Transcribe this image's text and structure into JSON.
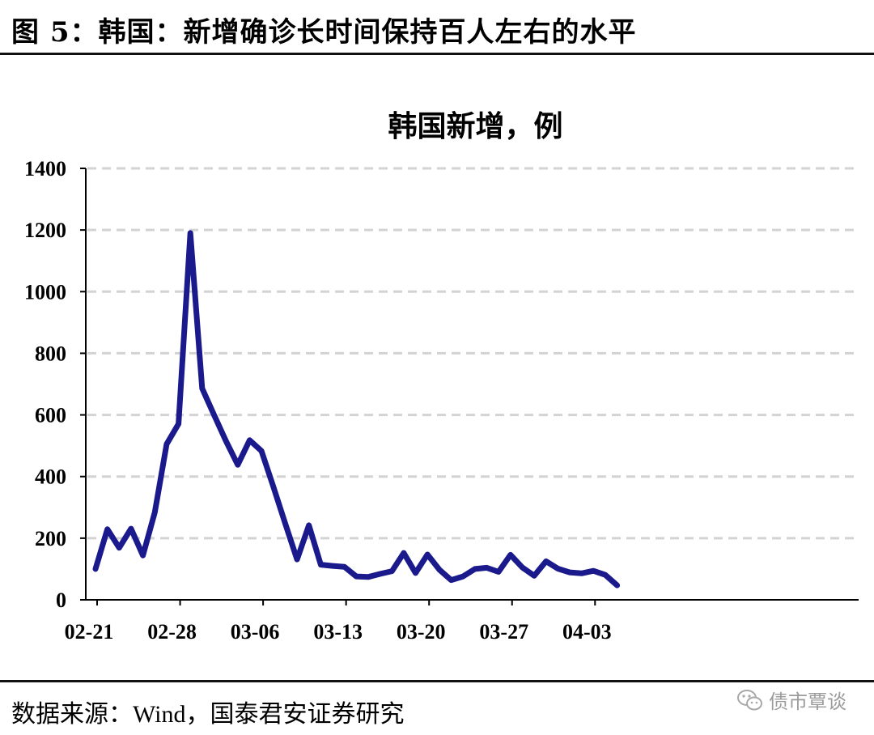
{
  "figure": {
    "title": "图 5：韩国：新增确诊长时间保持百人左右的水平",
    "source": "数据来源：Wind，国泰君安证券研究",
    "watermark": "债市覃谈"
  },
  "chart_data": {
    "type": "line",
    "title": "韩国新增，例",
    "xlabel": "",
    "ylabel": "",
    "x": [
      "02-21",
      "02-22",
      "02-23",
      "02-24",
      "02-25",
      "02-26",
      "02-27",
      "02-28",
      "02-29",
      "03-01",
      "03-02",
      "03-03",
      "03-04",
      "03-05",
      "03-06",
      "03-07",
      "03-08",
      "03-09",
      "03-10",
      "03-11",
      "03-12",
      "03-13",
      "03-14",
      "03-15",
      "03-16",
      "03-17",
      "03-18",
      "03-19",
      "03-20",
      "03-21",
      "03-22",
      "03-23",
      "03-24",
      "03-25",
      "03-26",
      "03-27",
      "03-28",
      "03-29",
      "03-30",
      "03-31",
      "04-01",
      "04-02",
      "04-03",
      "04-04",
      "04-05"
    ],
    "x_tick_labels": [
      "02-21",
      "02-28",
      "03-06",
      "03-13",
      "03-20",
      "03-27",
      "04-03"
    ],
    "ylim": [
      0,
      1400
    ],
    "y_ticks": [
      0,
      200,
      400,
      600,
      800,
      1000,
      1200,
      1400
    ],
    "grid": "horizontal-dashed",
    "series": [
      {
        "name": "",
        "color": "#1a1a8c",
        "values": [
          100,
          229,
          169,
          231,
          144,
          284,
          505,
          571,
          1190,
          686,
          600,
          516,
          438,
          518,
          483,
          367,
          248,
          131,
          242,
          114,
          110,
          107,
          76,
          74,
          84,
          93,
          152,
          87,
          147,
          98,
          64,
          76,
          100,
          104,
          91,
          146,
          105,
          78,
          125,
          101,
          89,
          86,
          94,
          81,
          47
        ]
      }
    ]
  }
}
